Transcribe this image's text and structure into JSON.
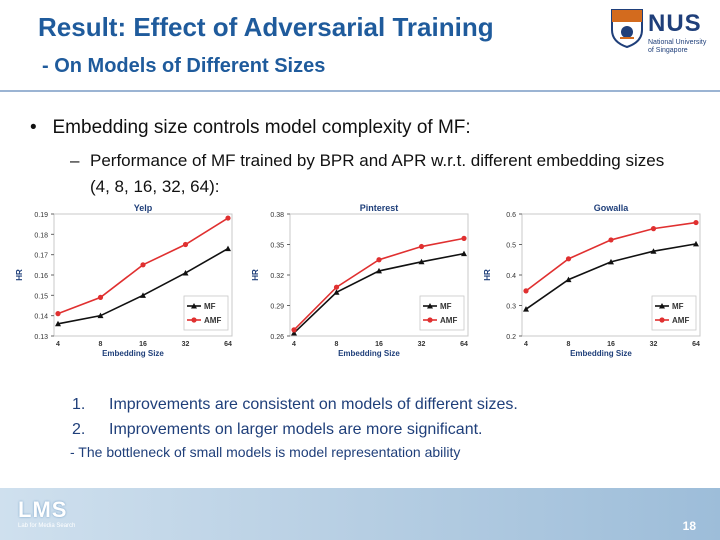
{
  "slide": {
    "title": "Result: Effect of Adversarial Training",
    "subtitle": "- On Models of Different Sizes",
    "bullet": "Embedding size controls model complexity of MF:",
    "subbullet": "Performance of MF trained by BPR and APR w.r.t. different embedding sizes (4, 8, 16, 32, 64):",
    "notes": [
      {
        "num": "1.",
        "text": "Improvements are consistent on models of different sizes."
      },
      {
        "num": "2.",
        "text": "Improvements on larger models are more significant."
      }
    ],
    "note_dash": "-  The bottleneck of small models is model representation ability",
    "page_number": "18"
  },
  "logo": {
    "name": "NUS",
    "line1": "National University",
    "line2": "of Singapore"
  },
  "footer_logo": {
    "name": "LMS",
    "tagline": "Lab for Media Search"
  },
  "colors": {
    "title": "#1f5b9c",
    "mf": "#111111",
    "amf": "#e03030"
  },
  "chart_data": [
    {
      "type": "line",
      "title": "Yelp",
      "xlabel": "Embedding Size",
      "ylabel": "HR",
      "categories": [
        "4",
        "8",
        "16",
        "32",
        "64"
      ],
      "yticks": [
        "0.13",
        "0.14",
        "0.15",
        "0.16",
        "0.17",
        "0.18",
        "0.19"
      ],
      "ylim": [
        0.13,
        0.19
      ],
      "legend_position": "bottom-right",
      "series": [
        {
          "name": "MF",
          "values": [
            0.136,
            0.14,
            0.15,
            0.161,
            0.173
          ]
        },
        {
          "name": "AMF",
          "values": [
            0.141,
            0.149,
            0.165,
            0.175,
            0.188
          ]
        }
      ]
    },
    {
      "type": "line",
      "title": "Pinterest",
      "xlabel": "Embedding Size",
      "ylabel": "HR",
      "categories": [
        "4",
        "8",
        "16",
        "32",
        "64"
      ],
      "yticks": [
        "0.26",
        "0.29",
        "0.32",
        "0.35",
        "0.38"
      ],
      "ylim": [
        0.26,
        0.38
      ],
      "legend_position": "bottom-right",
      "series": [
        {
          "name": "MF",
          "values": [
            0.263,
            0.303,
            0.324,
            0.333,
            0.341
          ]
        },
        {
          "name": "AMF",
          "values": [
            0.266,
            0.308,
            0.335,
            0.348,
            0.356
          ]
        }
      ]
    },
    {
      "type": "line",
      "title": "Gowalla",
      "xlabel": "Embedding Size",
      "ylabel": "HR",
      "categories": [
        "4",
        "8",
        "16",
        "32",
        "64"
      ],
      "yticks": [
        "0.2",
        "0.3",
        "0.4",
        "0.5",
        "0.6"
      ],
      "ylim": [
        0.2,
        0.6
      ],
      "legend_position": "bottom-right",
      "series": [
        {
          "name": "MF",
          "values": [
            0.288,
            0.385,
            0.443,
            0.478,
            0.502
          ]
        },
        {
          "name": "AMF",
          "values": [
            0.348,
            0.453,
            0.515,
            0.552,
            0.572
          ]
        }
      ]
    }
  ]
}
